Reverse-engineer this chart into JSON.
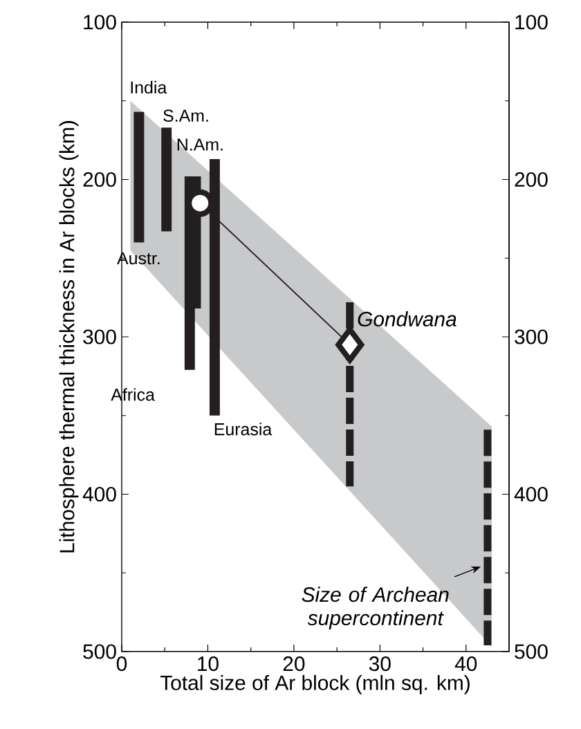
{
  "chart_data": {
    "type": "bar",
    "xlabel": "Total size of Ar block (mln sq. km)",
    "ylabel": "Lithosphere thermal thickness in Ar blocks (km)",
    "xlim": [
      0,
      45
    ],
    "xticks": [
      0,
      10,
      20,
      30,
      40
    ],
    "ylim": [
      500,
      100
    ],
    "yticks": [
      100,
      200,
      300,
      400,
      500
    ],
    "y2lim": [
      500,
      100
    ],
    "y2ticks": [
      100,
      200,
      300,
      400,
      500
    ],
    "grid": false,
    "series": [
      {
        "type": "area",
        "x": [
          1,
          43,
          43,
          1
        ],
        "values": [
          150,
          357,
          497,
          245
        ],
        "color": "#c8c9cb"
      },
      {
        "x": [
          2,
          5.2,
          7.9,
          8.6,
          10.8
        ],
        "base": [
          157,
          167,
          198,
          198,
          187
        ],
        "values": [
          83,
          66,
          123,
          84,
          163
        ],
        "color": "#231f20"
      },
      {
        "type": "line",
        "x": [
          9.1,
          26.5
        ],
        "values": [
          215,
          305
        ],
        "color": "#231f20",
        "line_style": "solid",
        "marker": "none"
      },
      {
        "type": "line",
        "x": [
          26.5,
          26.5
        ],
        "values": [
          278,
          395
        ],
        "color": "#231f20",
        "line_style": "dashed",
        "marker": "none"
      },
      {
        "type": "line",
        "x": [
          42.5,
          42.5
        ],
        "values": [
          359,
          496
        ],
        "color": "#231f20",
        "line_style": "dashed",
        "marker": "none"
      },
      {
        "type": "scatter",
        "x": [
          9.1
        ],
        "values": [
          215
        ],
        "color": "#231f20",
        "marker": "circle"
      },
      {
        "type": "scatter",
        "x": [
          26.5
        ],
        "values": [
          305
        ],
        "color": "#231f20",
        "marker": "diamond"
      }
    ],
    "annotations": [
      {
        "text": "India",
        "x": 2,
        "y": 157
      },
      {
        "text": "S.Am.",
        "x": 5.2,
        "y": 167
      },
      {
        "text": "N.Am.",
        "x": 10.8,
        "y": 187
      },
      {
        "text": "Austr.",
        "x": 2,
        "y": 240
      },
      {
        "text": "Africa",
        "x": 7.9,
        "y": 321
      },
      {
        "text": "Eurasia",
        "x": 10.8,
        "y": 350
      },
      {
        "text": "Gondwana",
        "x": 26.5,
        "y": 305
      },
      {
        "text": "Size of Archean supercontinent",
        "x": 42.2,
        "y": 446
      }
    ]
  }
}
